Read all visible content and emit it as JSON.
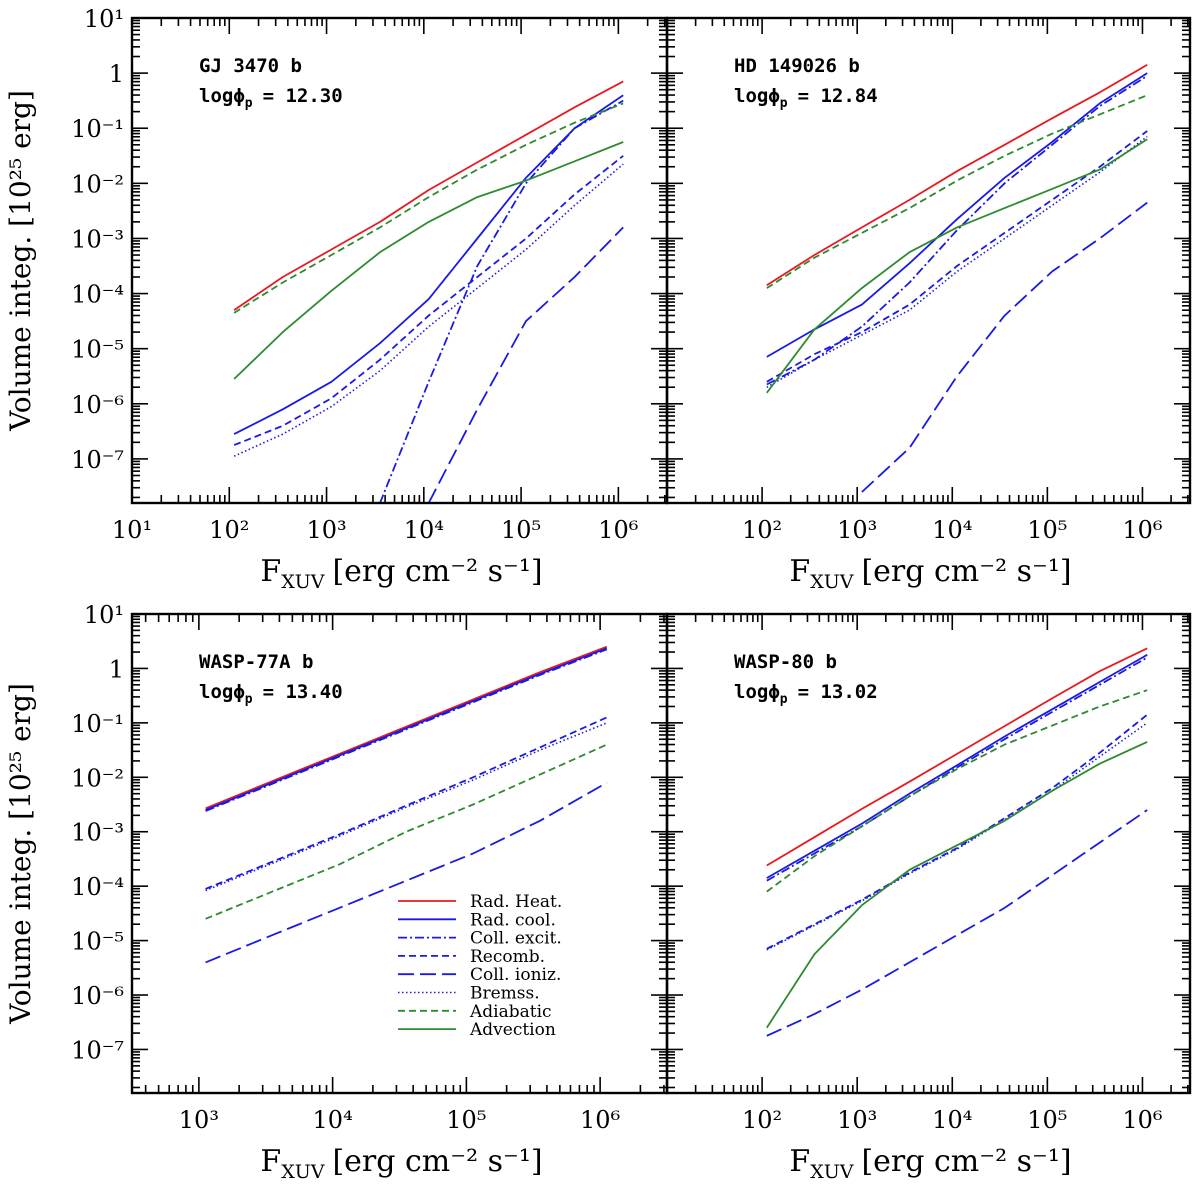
{
  "chart_data": [
    {
      "type": "line",
      "panel": "top-left",
      "title": "GJ 3470 b",
      "param_label": "logϕ",
      "param_sub": "p",
      "param_value": "= 12.30",
      "xlabel_main": "F",
      "xlabel_sub": "XUV",
      "xlabel_rest": "[erg cm⁻² s⁻¹]",
      "ylabel": "Volume integ. [10²⁵ erg]",
      "xlim_log": [
        1.0,
        6.5
      ],
      "ylim_log": [
        -7.8,
        1.0
      ],
      "x_ticklabels": [
        "10¹",
        "10²",
        "10³",
        "10⁴",
        "10⁵",
        "10⁶"
      ],
      "y_ticklabels": [
        "10¹",
        "1",
        "10⁻¹",
        "10⁻²",
        "10⁻³",
        "10⁻⁴",
        "10⁻⁵",
        "10⁻⁶",
        "10⁻⁷"
      ],
      "log10_F": [
        2.05,
        2.55,
        3.05,
        3.55,
        4.05,
        4.55,
        5.05,
        5.55,
        6.05
      ],
      "series": [
        {
          "name": "Rad. Heat.",
          "log10_values": [
            -4.3,
            -3.7,
            -3.2,
            -2.7,
            -2.12,
            -1.62,
            -1.12,
            -0.62,
            -0.15
          ]
        },
        {
          "name": "Rad. cool.",
          "log10_values": [
            -6.55,
            -6.1,
            -5.6,
            -4.9,
            -4.1,
            -3.0,
            -1.9,
            -1.0,
            -0.4
          ]
        },
        {
          "name": "Coll. excit.",
          "log10_values": [
            null,
            null,
            null,
            -7.8,
            -5.6,
            -3.5,
            -2.0,
            -1.0,
            -0.5
          ]
        },
        {
          "name": "Recomb.",
          "log10_values": [
            -6.75,
            -6.4,
            -5.9,
            -5.2,
            -4.4,
            -3.7,
            -3.0,
            -2.2,
            -1.5
          ]
        },
        {
          "name": "Coll. ioniz.",
          "log10_values": [
            null,
            null,
            null,
            null,
            -7.8,
            -6.1,
            -4.5,
            -3.7,
            -2.8
          ]
        },
        {
          "name": "Bremss.",
          "log10_values": [
            -6.95,
            -6.55,
            -6.05,
            -5.4,
            -4.6,
            -3.9,
            -3.2,
            -2.4,
            -1.65
          ]
        },
        {
          "name": "Adiabatic",
          "log10_values": [
            -4.35,
            -3.8,
            -3.3,
            -2.8,
            -2.25,
            -1.75,
            -1.3,
            -0.9,
            -0.55
          ]
        },
        {
          "name": "Advection",
          "log10_values": [
            -5.55,
            -4.7,
            -3.95,
            -3.25,
            -2.7,
            -2.25,
            -1.95,
            -1.6,
            -1.25
          ]
        }
      ]
    },
    {
      "type": "line",
      "panel": "top-right",
      "title": "HD 149026 b",
      "param_label": "logϕ",
      "param_sub": "p",
      "param_value": "= 12.84",
      "xlabel_main": "F",
      "xlabel_sub": "XUV",
      "xlabel_rest": "[erg cm⁻² s⁻¹]",
      "ylabel": "",
      "xlim_log": [
        1.0,
        6.5
      ],
      "ylim_log": [
        -7.8,
        1.0
      ],
      "x_ticklabels": [
        "10²",
        "10³",
        "10⁴",
        "10⁵",
        "10⁶"
      ],
      "y_ticklabels": [],
      "log10_F": [
        2.05,
        2.55,
        3.05,
        3.55,
        4.05,
        4.55,
        5.05,
        5.55,
        6.05
      ],
      "series": [
        {
          "name": "Rad. Heat.",
          "log10_values": [
            -3.85,
            -3.3,
            -2.8,
            -2.3,
            -1.78,
            -1.3,
            -0.82,
            -0.35,
            0.15
          ]
        },
        {
          "name": "Rad. cool.",
          "log10_values": [
            -5.15,
            -4.65,
            -4.2,
            -3.45,
            -2.65,
            -1.9,
            -1.25,
            -0.55,
            0.0
          ]
        },
        {
          "name": "Coll. excit.",
          "log10_values": [
            -5.65,
            -5.2,
            -4.6,
            -3.8,
            -2.85,
            -2.0,
            -1.3,
            -0.6,
            -0.05
          ]
        },
        {
          "name": "Recomb.",
          "log10_values": [
            -5.6,
            -5.1,
            -4.7,
            -4.2,
            -3.5,
            -2.9,
            -2.3,
            -1.7,
            -1.05
          ]
        },
        {
          "name": "Coll. ioniz.",
          "log10_values": [
            null,
            null,
            -7.6,
            -6.8,
            -5.5,
            -4.4,
            -3.6,
            -3.0,
            -2.35
          ]
        },
        {
          "name": "Bremss.",
          "log10_values": [
            -5.7,
            -5.2,
            -4.75,
            -4.3,
            -3.6,
            -3.0,
            -2.4,
            -1.8,
            -1.15
          ]
        },
        {
          "name": "Adiabatic",
          "log10_values": [
            -3.9,
            -3.35,
            -2.9,
            -2.45,
            -1.95,
            -1.5,
            -1.1,
            -0.75,
            -0.4
          ]
        },
        {
          "name": "Advection",
          "log10_values": [
            -5.8,
            -4.65,
            -3.9,
            -3.25,
            -2.8,
            -2.45,
            -2.1,
            -1.75,
            -1.2
          ]
        }
      ]
    },
    {
      "type": "line",
      "panel": "bottom-left",
      "title": "WASP-77A b",
      "param_label": "logϕ",
      "param_sub": "p",
      "param_value": "= 13.40",
      "xlabel_main": "F",
      "xlabel_sub": "XUV",
      "xlabel_rest": "[erg cm⁻² s⁻¹]",
      "ylabel": "Volume integ. [10²⁵ erg]",
      "xlim_log": [
        2.5,
        6.5
      ],
      "ylim_log": [
        -7.8,
        1.0
      ],
      "x_ticklabels": [
        "10³",
        "10⁴",
        "10⁵",
        "10⁶"
      ],
      "y_ticklabels": [
        "10¹",
        "1",
        "10⁻¹",
        "10⁻²",
        "10⁻³",
        "10⁻⁴",
        "10⁻⁵",
        "10⁻⁶",
        "10⁻⁷"
      ],
      "log10_F": [
        3.05,
        3.55,
        4.05,
        4.55,
        5.05,
        5.55,
        6.05
      ],
      "series": [
        {
          "name": "Rad. Heat.",
          "log10_values": [
            -2.57,
            -2.07,
            -1.57,
            -1.07,
            -0.57,
            -0.07,
            0.4
          ]
        },
        {
          "name": "Rad. cool.",
          "log10_values": [
            -2.6,
            -2.1,
            -1.6,
            -1.1,
            -0.6,
            -0.1,
            0.37
          ]
        },
        {
          "name": "Coll. excit.",
          "log10_values": [
            -2.62,
            -2.12,
            -1.62,
            -1.12,
            -0.62,
            -0.12,
            0.35
          ]
        },
        {
          "name": "Recomb.",
          "log10_values": [
            -4.05,
            -3.55,
            -3.05,
            -2.52,
            -2.0,
            -1.45,
            -0.9
          ]
        },
        {
          "name": "Coll. ioniz.",
          "log10_values": [
            -5.4,
            -4.9,
            -4.4,
            -3.9,
            -3.4,
            -2.8,
            -2.1
          ]
        },
        {
          "name": "Bremss.",
          "log10_values": [
            -4.08,
            -3.58,
            -3.08,
            -2.55,
            -2.05,
            -1.5,
            -1.0
          ]
        },
        {
          "name": "Adiabatic",
          "log10_values": [
            -4.6,
            -4.1,
            -3.6,
            -3.0,
            -2.5,
            -1.95,
            -1.4
          ]
        },
        {
          "name": "Advection",
          "log10_values": [
            null,
            null,
            null,
            null,
            null,
            null,
            null
          ]
        }
      ]
    },
    {
      "type": "line",
      "panel": "bottom-right",
      "title": "WASP-80 b",
      "param_label": "logϕ",
      "param_sub": "p",
      "param_value": "= 13.02",
      "xlabel_main": "F",
      "xlabel_sub": "XUV",
      "xlabel_rest": "[erg cm⁻² s⁻¹]",
      "ylabel": "",
      "xlim_log": [
        1.0,
        6.5
      ],
      "ylim_log": [
        -7.8,
        1.0
      ],
      "x_ticklabels": [
        "10²",
        "10³",
        "10⁴",
        "10⁵",
        "10⁶"
      ],
      "y_ticklabels": [],
      "log10_F": [
        2.05,
        2.55,
        3.05,
        3.55,
        4.05,
        4.55,
        5.05,
        5.55,
        6.05
      ],
      "series": [
        {
          "name": "Rad. Heat.",
          "log10_values": [
            -3.62,
            -3.1,
            -2.58,
            -2.08,
            -1.57,
            -1.06,
            -0.55,
            -0.05,
            0.37
          ]
        },
        {
          "name": "Rad. cool.",
          "log10_values": [
            -3.85,
            -3.35,
            -2.85,
            -2.3,
            -1.78,
            -1.25,
            -0.75,
            -0.25,
            0.25
          ]
        },
        {
          "name": "Coll. excit.",
          "log10_values": [
            -3.9,
            -3.4,
            -2.9,
            -2.35,
            -1.82,
            -1.3,
            -0.8,
            -0.3,
            0.2
          ]
        },
        {
          "name": "Recomb.",
          "log10_values": [
            -5.15,
            -4.7,
            -4.25,
            -3.75,
            -3.3,
            -2.75,
            -2.2,
            -1.55,
            -0.85
          ]
        },
        {
          "name": "Coll. ioniz.",
          "log10_values": [
            -6.75,
            -6.35,
            -5.9,
            -5.4,
            -4.9,
            -4.4,
            -3.8,
            -3.2,
            -2.6
          ]
        },
        {
          "name": "Bremss.",
          "log10_values": [
            -5.17,
            -4.72,
            -4.27,
            -3.77,
            -3.32,
            -2.78,
            -2.25,
            -1.62,
            -1.0
          ]
        },
        {
          "name": "Adiabatic",
          "log10_values": [
            -4.1,
            -3.45,
            -2.9,
            -2.35,
            -1.85,
            -1.4,
            -1.05,
            -0.7,
            -0.4
          ]
        },
        {
          "name": "Advection",
          "log10_values": [
            -6.6,
            -5.25,
            -4.35,
            -3.7,
            -3.25,
            -2.8,
            -2.25,
            -1.75,
            -1.35
          ]
        }
      ]
    }
  ],
  "legend": {
    "placement": "bottom-left panel, lower-right",
    "items": [
      {
        "name": "Rad. Heat.",
        "color": "#e8191f",
        "style": "solid"
      },
      {
        "name": "Rad. cool.",
        "color": "#1a1ae6",
        "style": "solid"
      },
      {
        "name": "Coll. excit.",
        "color": "#1a1ae6",
        "style": "dash-dot"
      },
      {
        "name": "Recomb.",
        "color": "#1a1ae6",
        "style": "dashed"
      },
      {
        "name": "Coll. ioniz.",
        "color": "#1a1ae6",
        "style": "long-dash"
      },
      {
        "name": "Bremss.",
        "color": "#1a1ae6",
        "style": "dotted"
      },
      {
        "name": "Adiabatic",
        "color": "#2f8a2f",
        "style": "dashed"
      },
      {
        "name": "Advection",
        "color": "#2f8a2f",
        "style": "solid"
      }
    ]
  }
}
